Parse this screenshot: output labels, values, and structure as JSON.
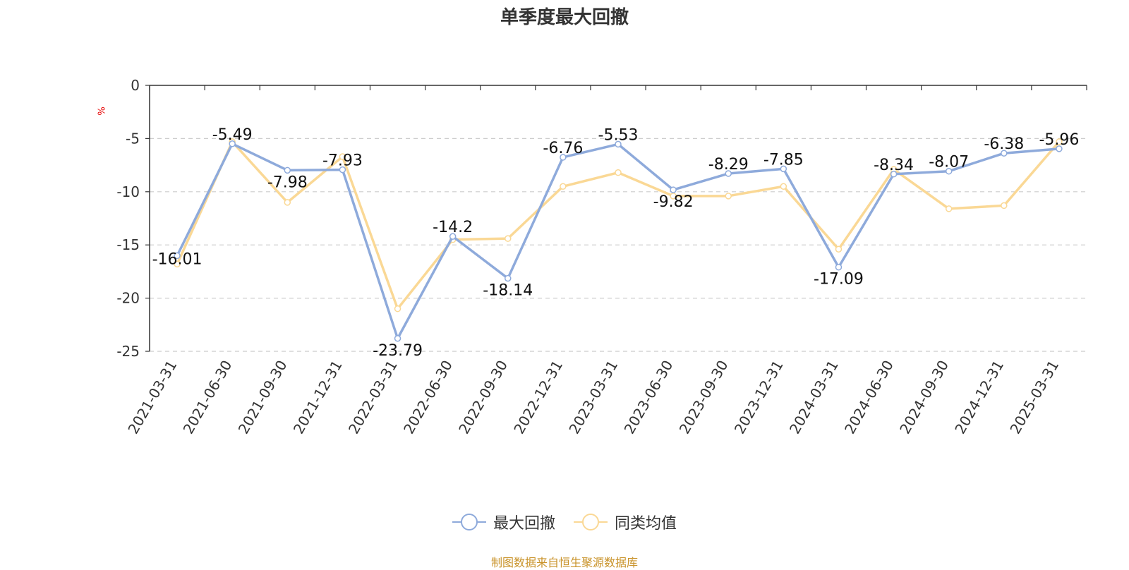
{
  "chart_data": {
    "type": "line",
    "title": "单季度最大回撤",
    "ylabel": "%",
    "ylim": [
      -25,
      0
    ],
    "yticks": [
      0,
      -5,
      -10,
      -15,
      -20,
      -25
    ],
    "grid": true,
    "legend_position": "bottom",
    "categories": [
      "2021-03-31",
      "2021-06-30",
      "2021-09-30",
      "2021-12-31",
      "2022-03-31",
      "2022-06-30",
      "2022-09-30",
      "2022-12-31",
      "2023-03-31",
      "2023-06-30",
      "2023-09-30",
      "2023-12-31",
      "2024-03-31",
      "2024-06-30",
      "2024-09-30",
      "2024-12-31",
      "2025-03-31"
    ],
    "series": [
      {
        "name": "最大回撤",
        "color": "#8eaadb",
        "show_labels": true,
        "values": [
          -16.01,
          -5.49,
          -7.98,
          -7.93,
          -23.79,
          -14.2,
          -18.14,
          -6.76,
          -5.53,
          -9.82,
          -8.29,
          -7.85,
          -17.09,
          -8.34,
          -8.07,
          -6.38,
          -5.96
        ]
      },
      {
        "name": "同类均值",
        "color": "#fad895",
        "show_labels": false,
        "values": [
          -16.8,
          -5.3,
          -11.0,
          -6.7,
          -21.0,
          -14.5,
          -14.4,
          -9.5,
          -8.2,
          -10.4,
          -10.4,
          -9.5,
          -15.4,
          -7.9,
          -11.6,
          -11.3,
          -5.3
        ]
      }
    ]
  },
  "source_note": "制图数据来自恒生聚源数据库"
}
